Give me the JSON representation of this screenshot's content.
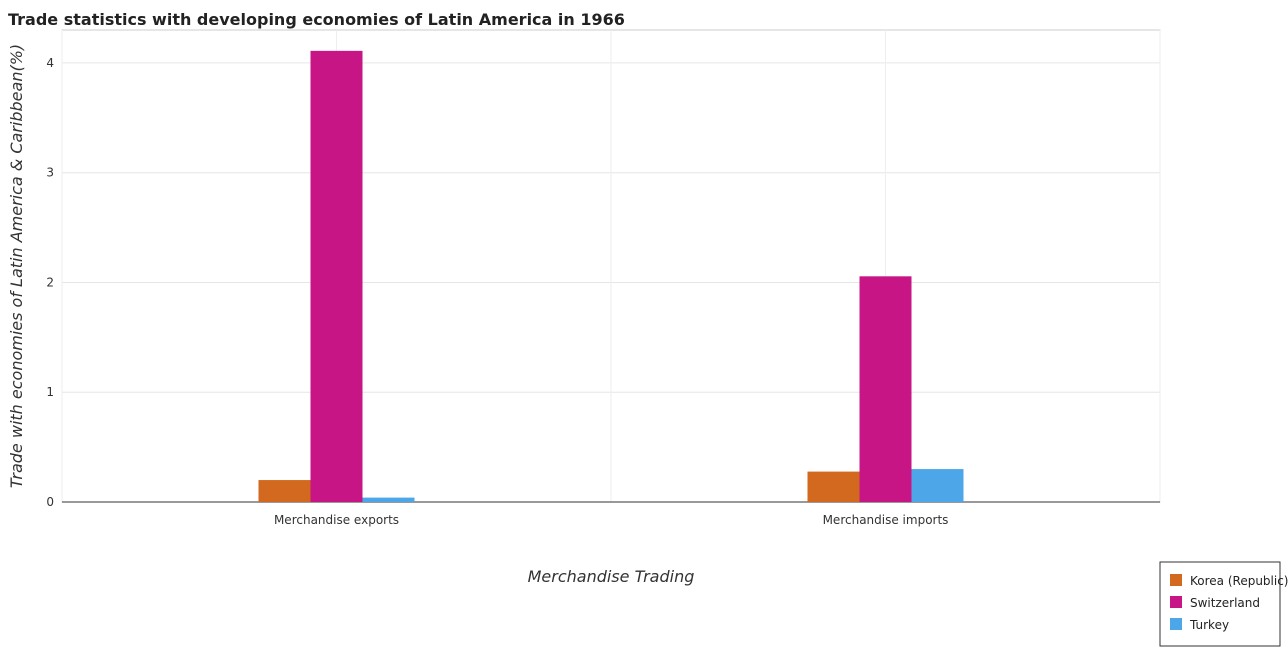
{
  "chart_data": {
    "type": "bar",
    "title": "Trade statistics with developing economies of Latin America in 1966",
    "xlabel": "Merchandise Trading",
    "ylabel": "Trade with economies of Latin America & Caribbean(%)",
    "categories": [
      "Merchandise exports",
      "Merchandise imports"
    ],
    "series": [
      {
        "name": "Korea (Republic)",
        "color": "#d2691e",
        "values": [
          0.2,
          0.277
        ]
      },
      {
        "name": "Switzerland",
        "color": "#c71585",
        "values": [
          4.11,
          2.056
        ]
      },
      {
        "name": "Turkey",
        "color": "#4da6e8",
        "values": [
          0.04,
          0.3
        ]
      }
    ],
    "ylim": [
      0,
      4.3
    ],
    "yticks": [
      0,
      1,
      2,
      3,
      4
    ],
    "grid": true,
    "legend_position": "bottom-right"
  }
}
